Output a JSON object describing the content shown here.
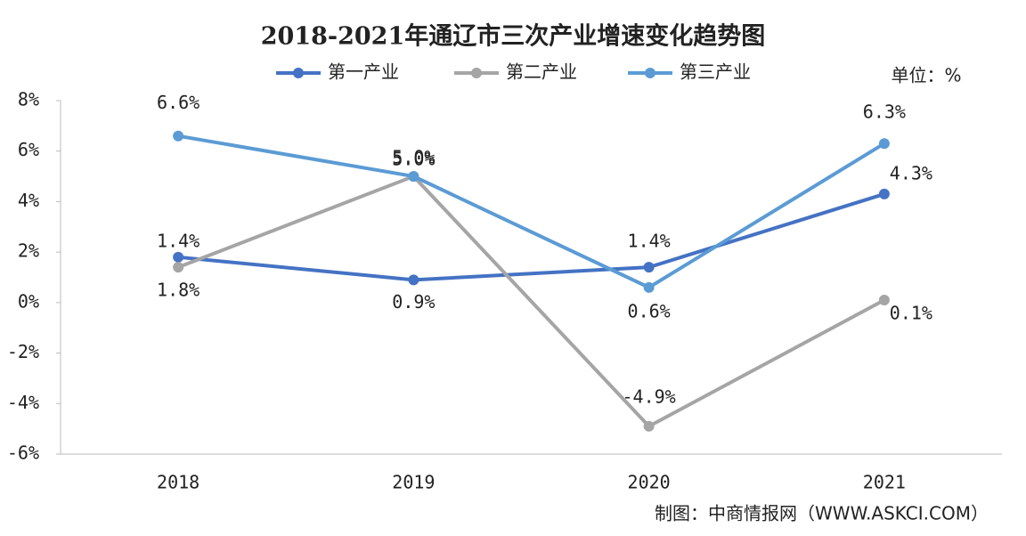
{
  "chart_data": {
    "type": "line",
    "title": "2018-2021年通辽市三次产业增速变化趋势图",
    "unit_label": "单位：%",
    "source": "制图：中商情报网（WWW.ASKCI.COM）",
    "categories": [
      "2018",
      "2019",
      "2020",
      "2021"
    ],
    "series": [
      {
        "name": "第一产业",
        "color": "#4472c4",
        "values": [
          1.8,
          0.9,
          1.4,
          4.3
        ],
        "value_labels": [
          "1.8%",
          "0.9%",
          "1.4%",
          "4.3%"
        ]
      },
      {
        "name": "第二产业",
        "color": "#a5a5a5",
        "values": [
          1.4,
          5.0,
          -4.9,
          0.1
        ],
        "value_labels": [
          "1.4%",
          "5.0%",
          "-4.9%",
          "0.1%"
        ]
      },
      {
        "name": "第三产业",
        "color": "#5b9bd5",
        "values": [
          6.6,
          5.0,
          0.6,
          6.3
        ],
        "value_labels": [
          "6.6%",
          "5.0%",
          "0.6%",
          "6.3%"
        ]
      }
    ],
    "ylim": [
      -6,
      8
    ],
    "yticks": [
      {
        "value": -6,
        "label": "-6%"
      },
      {
        "value": -4,
        "label": "-4%"
      },
      {
        "value": -2,
        "label": "-2%"
      },
      {
        "value": 0,
        "label": "0%"
      },
      {
        "value": 2,
        "label": "2%"
      },
      {
        "value": 4,
        "label": "4%"
      },
      {
        "value": 6,
        "label": "6%"
      },
      {
        "value": 8,
        "label": "8%"
      }
    ],
    "grid": false,
    "legend": "top"
  }
}
